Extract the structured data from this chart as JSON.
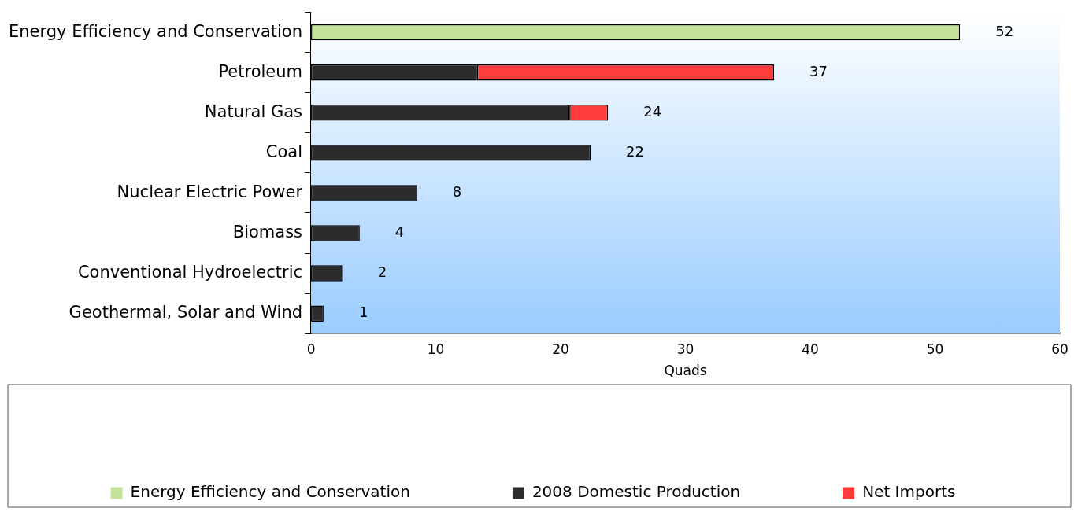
{
  "chart_data": {
    "type": "bar",
    "orientation": "horizontal",
    "stacked": true,
    "xlabel": "Quads",
    "categories": [
      "Energy Efficiency and Conservation",
      "Petroleum",
      "Natural Gas",
      "Coal",
      "Nuclear Electric Power",
      "Biomass",
      "Conventional Hydroelectric",
      "Geothermal, Solar and Wind"
    ],
    "series": [
      {
        "name": "Energy Efficiency and Conservation",
        "color": "#c3e29a",
        "values": [
          52,
          null,
          null,
          null,
          null,
          null,
          null,
          null
        ]
      },
      {
        "name": "2008 Domestic Production",
        "color": "#2b2b2b",
        "values": [
          null,
          13.3,
          20.7,
          22.4,
          8.5,
          3.9,
          2.5,
          1.0
        ]
      },
      {
        "name": "Net Imports",
        "color": "#ff3b3b",
        "values": [
          null,
          23.8,
          3.1,
          null,
          null,
          null,
          null,
          null
        ]
      }
    ],
    "totals": [
      "52",
      "37",
      "24",
      "22",
      "8",
      "4",
      "2",
      "1"
    ],
    "xlim": [
      0,
      60
    ],
    "xticks": [
      0,
      10,
      20,
      30,
      40,
      50,
      60
    ],
    "grid": false,
    "legend": "bottom"
  }
}
